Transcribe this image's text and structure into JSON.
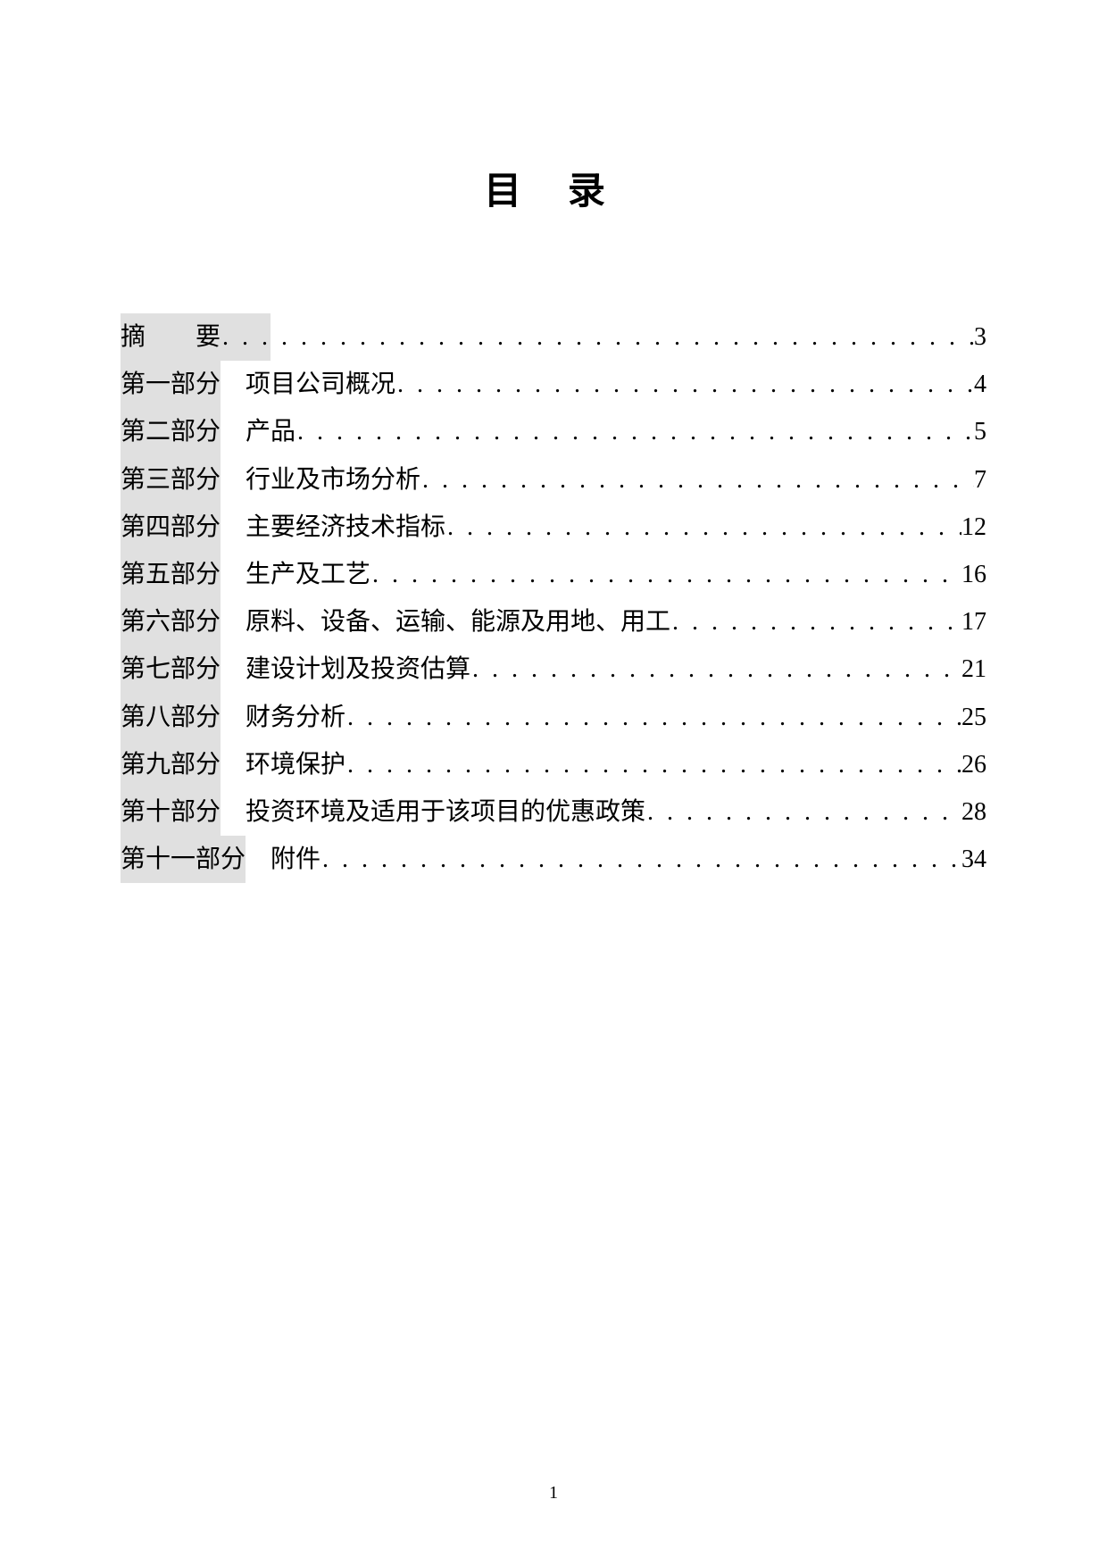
{
  "title": "目  录",
  "toc": [
    {
      "section": "摘",
      "sectionExtra": "要",
      "title": "",
      "page": "3",
      "isAbstract": true
    },
    {
      "section": "第一部分",
      "title": "项目公司概况",
      "page": "4"
    },
    {
      "section": "第二部分",
      "title": "产品",
      "page": "5"
    },
    {
      "section": "第三部分",
      "title": "行业及市场分析",
      "page": "7"
    },
    {
      "section": "第四部分",
      "title": "主要经济技术指标",
      "page": "12"
    },
    {
      "section": "第五部分",
      "title": "生产及工艺",
      "page": "16"
    },
    {
      "section": "第六部分",
      "title": "原料、设备、运输、能源及用地、用工",
      "page": "17"
    },
    {
      "section": "第七部分",
      "title": "建设计划及投资估算",
      "page": "21"
    },
    {
      "section": "第八部分",
      "title": "财务分析",
      "page": "25"
    },
    {
      "section": "第九部分",
      "title": "环境保护",
      "page": "26"
    },
    {
      "section": "第十部分",
      "title": "投资环境及适用于该项目的优惠政策",
      "page": "28"
    },
    {
      "section": "第十一部分",
      "title": "附件",
      "page": "34"
    }
  ],
  "pageNumber": "1",
  "colors": {
    "background": "#ffffff",
    "text": "#000000",
    "highlight": "#e0e0e0"
  },
  "typography": {
    "titleFontSize": 42,
    "bodyFontSize": 28,
    "pageNumberFontSize": 20,
    "lineHeight": 1.9
  }
}
